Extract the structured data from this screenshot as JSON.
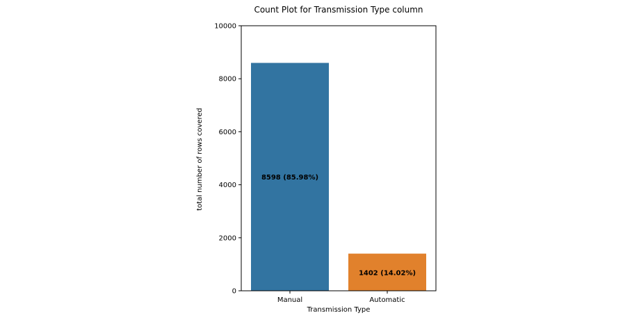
{
  "chart_data": {
    "type": "bar",
    "title": "Count Plot for Transmission Type column",
    "xlabel": "Transmission Type",
    "ylabel": "total number of rows covered",
    "categories": [
      "Manual",
      "Automatic"
    ],
    "values": [
      8598,
      1402
    ],
    "bar_labels": [
      "8598 (85.98%)",
      "1402 (14.02%)"
    ],
    "colors": [
      "#3274a1",
      "#e1812c"
    ],
    "ylim": [
      0,
      10000
    ],
    "yticks": [
      0,
      2000,
      4000,
      6000,
      8000,
      10000
    ],
    "grid": false,
    "legend": "none"
  }
}
